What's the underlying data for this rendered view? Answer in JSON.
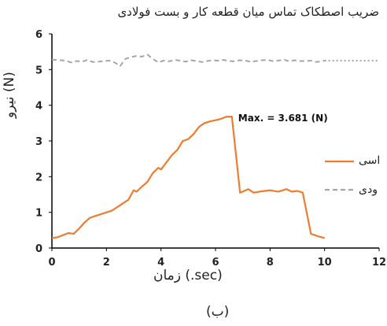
{
  "chart_data": {
    "type": "line",
    "title": "ضریب اصطکاک تماس میان قطعه کار و بست فولادی",
    "xlabel": "زمان (.sec)",
    "ylabel": "نیرو (N)",
    "caption": "(ب)",
    "xlim": [
      0,
      12
    ],
    "ylim": [
      0,
      6
    ],
    "xticks": [
      0,
      2,
      4,
      6,
      8,
      10,
      12
    ],
    "yticks": [
      0,
      1,
      2,
      3,
      4,
      5,
      6
    ],
    "grid": false,
    "legend_position": "right, partially cropped",
    "annotation": {
      "text": "Max. = 3.681 (N)",
      "x": 6.6,
      "y": 3.681
    },
    "series": [
      {
        "name": "تماسی",
        "color": "#ED7D31",
        "style": "solid",
        "x": [
          0,
          0.2,
          0.4,
          0.6,
          0.8,
          1.0,
          1.2,
          1.4,
          1.6,
          1.8,
          2.0,
          2.2,
          2.4,
          2.6,
          2.8,
          3.0,
          3.1,
          3.3,
          3.5,
          3.7,
          3.9,
          4.0,
          4.2,
          4.4,
          4.6,
          4.8,
          5.0,
          5.2,
          5.4,
          5.6,
          5.8,
          6.0,
          6.2,
          6.4,
          6.6,
          6.9,
          7.2,
          7.4,
          7.6,
          7.8,
          8.0,
          8.3,
          8.6,
          8.8,
          9.0,
          9.2,
          9.5,
          9.8,
          10.0
        ],
        "y": [
          0.28,
          0.3,
          0.36,
          0.42,
          0.4,
          0.55,
          0.72,
          0.85,
          0.9,
          0.95,
          1.0,
          1.05,
          1.15,
          1.25,
          1.35,
          1.62,
          1.58,
          1.72,
          1.85,
          2.1,
          2.25,
          2.2,
          2.4,
          2.6,
          2.75,
          3.0,
          3.05,
          3.2,
          3.4,
          3.5,
          3.55,
          3.58,
          3.62,
          3.68,
          3.681,
          1.55,
          1.65,
          1.55,
          1.58,
          1.6,
          1.62,
          1.58,
          1.65,
          1.58,
          1.6,
          1.55,
          0.4,
          0.32,
          0.28
        ]
      },
      {
        "name": "عمودی",
        "color": "#A6A6A6",
        "style": "dashed",
        "x": [
          0,
          0.3,
          0.5,
          0.7,
          0.9,
          1.1,
          1.3,
          1.5,
          1.7,
          1.9,
          2.1,
          2.3,
          2.5,
          2.7,
          2.9,
          3.1,
          3.3,
          3.5,
          3.7,
          3.9,
          4.1,
          4.3,
          4.5,
          4.7,
          4.9,
          5.1,
          5.3,
          5.5,
          5.7,
          5.9,
          6.1,
          6.3,
          6.5,
          6.7,
          6.9,
          7.1,
          7.3,
          7.5,
          7.7,
          7.9,
          8.1,
          8.3,
          8.5,
          8.7,
          8.9,
          9.1,
          9.3,
          9.5,
          9.7,
          10.0
        ],
        "y": [
          5.28,
          5.26,
          5.25,
          5.2,
          5.24,
          5.22,
          5.27,
          5.21,
          5.22,
          5.24,
          5.25,
          5.2,
          5.1,
          5.3,
          5.35,
          5.38,
          5.36,
          5.42,
          5.3,
          5.2,
          5.25,
          5.23,
          5.27,
          5.25,
          5.22,
          5.26,
          5.24,
          5.21,
          5.24,
          5.26,
          5.25,
          5.27,
          5.24,
          5.23,
          5.26,
          5.25,
          5.22,
          5.24,
          5.26,
          5.27,
          5.24,
          5.25,
          5.28,
          5.23,
          5.26,
          5.24,
          5.24,
          5.25,
          5.21,
          5.25
        ]
      }
    ],
    "extension": {
      "from_x": 10.0,
      "to_x": 12.0,
      "y": 5.25,
      "style": "dotted"
    },
    "legend": [
      {
        "label": "تماسی",
        "shown": "اسی",
        "color": "#ED7D31"
      },
      {
        "label": "عمودی",
        "shown": "ودی",
        "color": "#A6A6A6"
      }
    ]
  }
}
